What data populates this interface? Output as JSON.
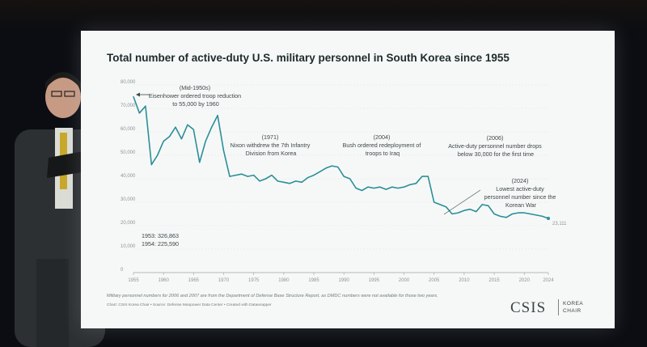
{
  "chart_data": {
    "type": "line",
    "title": "Total number of active-duty U.S. military personnel in South Korea since 1955",
    "xlabel": "",
    "ylabel": "",
    "xlim": [
      1955,
      2024
    ],
    "ylim": [
      0,
      80000
    ],
    "x_ticks": [
      "1955",
      "1960",
      "1965",
      "1970",
      "1975",
      "1980",
      "1985",
      "1990",
      "1995",
      "2000",
      "2005",
      "2010",
      "2015",
      "2020",
      "2024"
    ],
    "y_ticks": [
      "0",
      "10,000",
      "20,000",
      "30,000",
      "40,000",
      "50,000",
      "60,000",
      "70,000",
      "80,000"
    ],
    "grid": true,
    "series": [
      {
        "color": "#2b8f98",
        "x": [
          1955,
          1956,
          1957,
          1958,
          1959,
          1960,
          1961,
          1962,
          1963,
          1964,
          1965,
          1966,
          1967,
          1968,
          1969,
          1970,
          1971,
          1972,
          1973,
          1974,
          1975,
          1976,
          1977,
          1978,
          1979,
          1980,
          1981,
          1982,
          1983,
          1984,
          1985,
          1986,
          1987,
          1988,
          1989,
          1990,
          1991,
          1992,
          1993,
          1994,
          1995,
          1996,
          1997,
          1998,
          1999,
          2000,
          2001,
          2002,
          2003,
          2004,
          2005,
          2006,
          2007,
          2008,
          2009,
          2010,
          2011,
          2012,
          2013,
          2014,
          2015,
          2016,
          2017,
          2018,
          2019,
          2020,
          2021,
          2022,
          2023,
          2024
        ],
        "values": [
          75000,
          68000,
          71000,
          46000,
          50000,
          56000,
          58000,
          62000,
          57000,
          63000,
          61000,
          47000,
          56000,
          62000,
          67000,
          52000,
          41000,
          41500,
          42000,
          41000,
          41500,
          39000,
          40000,
          41500,
          39000,
          38500,
          38000,
          39000,
          38500,
          40500,
          41500,
          43000,
          44500,
          45500,
          45000,
          41000,
          40000,
          36000,
          35000,
          36500,
          36000,
          36500,
          35500,
          36500,
          36000,
          36500,
          37500,
          38000,
          41000,
          41000,
          30000,
          29000,
          28000,
          25000,
          25500,
          26500,
          27000,
          26000,
          29000,
          28500,
          25000,
          24000,
          23500,
          25000,
          25500,
          25500,
          25000,
          24500,
          24000,
          23111
        ]
      }
    ],
    "end_label": "23,111",
    "annotations": [
      {
        "lines": [
          "(Mid-1950s)",
          "Eisenhower ordered troop reduction",
          "to 55,000 by 1960"
        ]
      },
      {
        "lines": [
          "(1971)",
          "Nixon withdrew the 7th Infantry",
          "Division from Korea"
        ]
      },
      {
        "lines": [
          "(2004)",
          "Bush ordered redeployment of",
          "troops to Iraq"
        ]
      },
      {
        "lines": [
          "(2006)",
          "Active-duty personnel number drops",
          "below 30,000 for the first time"
        ]
      },
      {
        "lines": [
          "(2024)",
          "Lowest active-duty",
          "personnel number since the",
          "Korean War"
        ]
      },
      {
        "lines": [
          "1953: 326,863",
          "1954: 225,590"
        ]
      }
    ]
  },
  "footnote": "Military personnel numbers for 2006 and 2007 are from the Department of Defense Base Structure Report, as DMDC numbers were not available for those two years.",
  "credit": "Chart: CSIS Korea Chair • Source: Defense Manpower Data Center • Created with Datawrapper",
  "logo": {
    "name": "CSIS",
    "sub": [
      "KOREA",
      "CHAIR"
    ]
  }
}
